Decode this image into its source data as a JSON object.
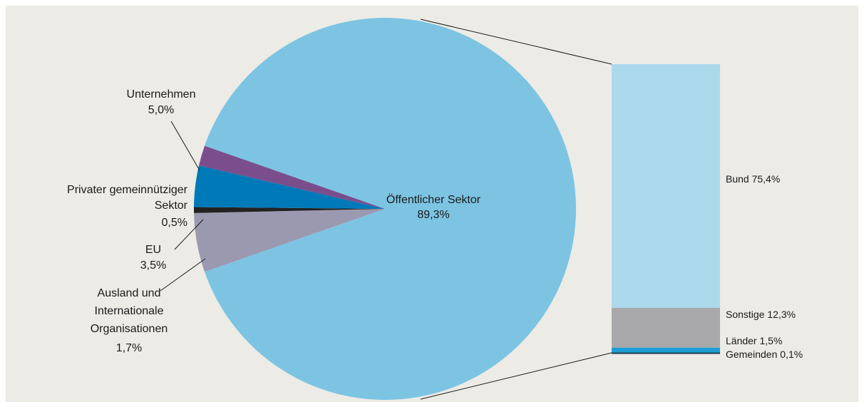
{
  "chart_data": [
    {
      "type": "pie",
      "slices": [
        {
          "label_lines": [
            "Öffentlicher Sektor"
          ],
          "value_label": "89,3%",
          "value": 89.3,
          "color": "#7dc4e3"
        },
        {
          "label_lines": [
            "Unternehmen"
          ],
          "value_label": "5,0%",
          "value": 5.0,
          "color": "#9b99b0"
        },
        {
          "label_lines": [
            "Privater gemeinnütziger",
            "Sektor"
          ],
          "value_label": "0,5%",
          "value": 0.5,
          "color": "#222222"
        },
        {
          "label_lines": [
            "EU"
          ],
          "value_label": "3,5%",
          "value": 3.5,
          "color": "#0079b8"
        },
        {
          "label_lines": [
            "Ausland und",
            "Internationale",
            "Organisationen"
          ],
          "value_label": "1,7%",
          "value": 1.7,
          "color": "#7a4e8c"
        }
      ]
    },
    {
      "type": "bar",
      "stacked": true,
      "segments": [
        {
          "label": "Bund 75,4%",
          "value": 75.4,
          "color": "#acd8ec"
        },
        {
          "label": "Sonstige 12,3%",
          "value": 12.3,
          "color": "#a9a8aa"
        },
        {
          "label": "Länder 1,5%",
          "value": 1.5,
          "color": "#1a9ed3"
        },
        {
          "label": "Gemeinden 0,1%",
          "value": 0.1,
          "color": "#1b3a4c"
        }
      ]
    }
  ]
}
